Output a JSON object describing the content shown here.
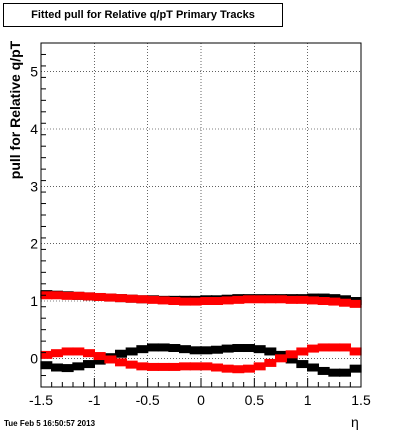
{
  "chart_data": {
    "type": "scatter",
    "title": "Fitted pull for Relative q/pT  Primary Tracks",
    "xlabel": "η",
    "ylabel": "pull for Relative q/pT",
    "xlim": [
      -1.5,
      1.5
    ],
    "ylim": [
      -0.5,
      5.5
    ],
    "x_ticks": [
      -1.5,
      -1,
      -0.5,
      0,
      0.5,
      1,
      1.5
    ],
    "y_ticks": [
      0,
      1,
      2,
      3,
      4,
      5
    ],
    "x_tick_labels": [
      "-1.5",
      "-1",
      "-0.5",
      "0",
      "0.5",
      "1",
      "1.5"
    ],
    "y_tick_labels": [
      "0",
      "1",
      "2",
      "3",
      "4",
      "5"
    ],
    "grid": true,
    "series": [
      {
        "color": "#000000",
        "x": [
          -1.45,
          -1.35,
          -1.25,
          -1.15,
          -1.05,
          -0.95,
          -0.85,
          -0.75,
          -0.65,
          -0.55,
          -0.45,
          -0.35,
          -0.25,
          -0.15,
          -0.05,
          0.05,
          0.15,
          0.25,
          0.35,
          0.45,
          0.55,
          0.65,
          0.75,
          0.85,
          0.95,
          1.05,
          1.15,
          1.25,
          1.35,
          1.45
        ],
        "y": [
          1.12,
          1.11,
          1.1,
          1.09,
          1.08,
          1.07,
          1.06,
          1.05,
          1.04,
          1.03,
          1.03,
          1.02,
          1.02,
          1.02,
          1.02,
          1.03,
          1.03,
          1.04,
          1.05,
          1.05,
          1.05,
          1.05,
          1.05,
          1.05,
          1.05,
          1.06,
          1.06,
          1.05,
          1.03,
          1.0
        ]
      },
      {
        "color": "#ff0000",
        "x": [
          -1.45,
          -1.35,
          -1.25,
          -1.15,
          -1.05,
          -0.95,
          -0.85,
          -0.75,
          -0.65,
          -0.55,
          -0.45,
          -0.35,
          -0.25,
          -0.15,
          -0.05,
          0.05,
          0.15,
          0.25,
          0.35,
          0.45,
          0.55,
          0.65,
          0.75,
          0.85,
          0.95,
          1.05,
          1.15,
          1.25,
          1.35,
          1.45
        ],
        "y": [
          1.1,
          1.1,
          1.09,
          1.09,
          1.08,
          1.07,
          1.06,
          1.05,
          1.04,
          1.03,
          1.02,
          1.01,
          1.0,
          0.99,
          0.99,
          1.0,
          1.0,
          1.01,
          1.02,
          1.03,
          1.03,
          1.03,
          1.03,
          1.02,
          1.02,
          1.01,
          1.0,
          0.99,
          0.97,
          0.95
        ]
      },
      {
        "color": "#000000",
        "x": [
          -1.45,
          -1.35,
          -1.25,
          -1.15,
          -1.05,
          -0.95,
          -0.85,
          -0.75,
          -0.65,
          -0.55,
          -0.45,
          -0.35,
          -0.25,
          -0.15,
          -0.05,
          0.05,
          0.15,
          0.25,
          0.35,
          0.45,
          0.55,
          0.65,
          0.75,
          0.85,
          0.95,
          1.05,
          1.15,
          1.25,
          1.35,
          1.45
        ],
        "y": [
          -0.12,
          -0.16,
          -0.17,
          -0.14,
          -0.1,
          -0.04,
          0.02,
          0.08,
          0.12,
          0.16,
          0.19,
          0.19,
          0.18,
          0.16,
          0.14,
          0.14,
          0.15,
          0.17,
          0.18,
          0.18,
          0.16,
          0.12,
          0.06,
          -0.02,
          -0.1,
          -0.16,
          -0.22,
          -0.25,
          -0.25,
          -0.18
        ]
      },
      {
        "color": "#ff0000",
        "x": [
          -1.45,
          -1.35,
          -1.25,
          -1.15,
          -1.05,
          -0.95,
          -0.85,
          -0.75,
          -0.65,
          -0.55,
          -0.45,
          -0.35,
          -0.25,
          -0.15,
          -0.05,
          0.05,
          0.15,
          0.25,
          0.35,
          0.45,
          0.55,
          0.65,
          0.75,
          0.85,
          0.95,
          1.05,
          1.15,
          1.25,
          1.35,
          1.45
        ],
        "y": [
          0.06,
          0.09,
          0.12,
          0.12,
          0.09,
          0.04,
          -0.02,
          -0.07,
          -0.11,
          -0.14,
          -0.15,
          -0.15,
          -0.15,
          -0.14,
          -0.14,
          -0.14,
          -0.16,
          -0.18,
          -0.19,
          -0.18,
          -0.14,
          -0.08,
          0.0,
          0.07,
          0.12,
          0.17,
          0.19,
          0.19,
          0.19,
          0.12
        ]
      }
    ]
  },
  "footer": {
    "timestamp": "Tue Feb  5 16:50:57 2013"
  }
}
